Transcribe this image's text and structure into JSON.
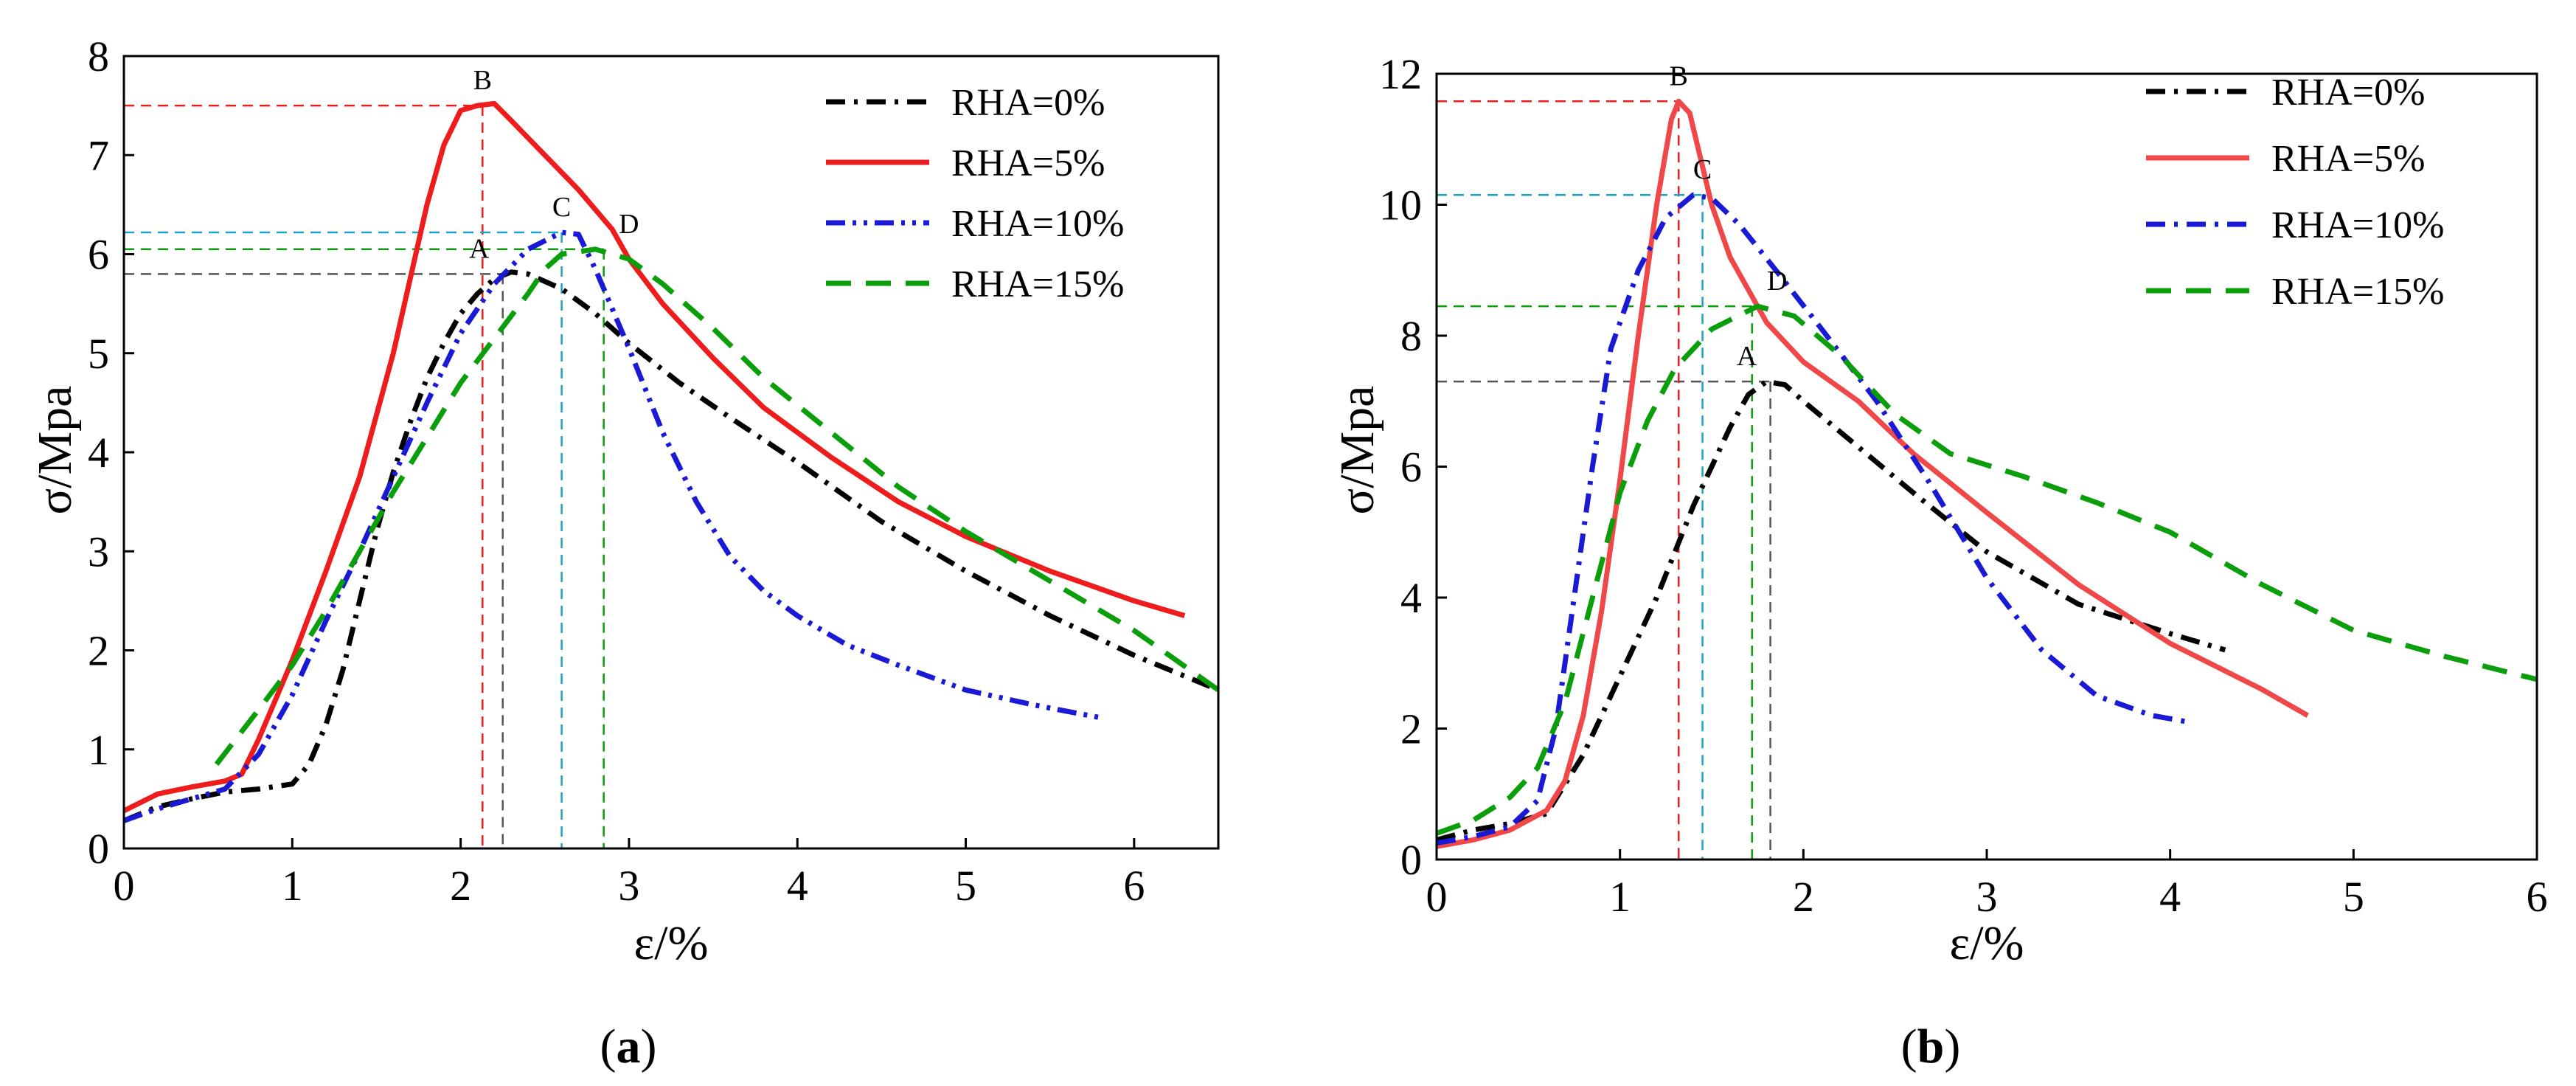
{
  "colors": {
    "rha0": "#000000",
    "rha5": "#ee1c1c",
    "rha10": "#1a1ad6",
    "rha15": "#0a9e0a",
    "rha5_b": "#f04848",
    "guide_a": "#555555",
    "guide_b": "#ee1c1c",
    "guide_c": "#1aa3c4",
    "guide_d": "#0a9e0a"
  },
  "chart_data": [
    {
      "type": "line",
      "panel_label": "a",
      "xlabel": "ε/%",
      "ylabel": "σ/Mpa",
      "xlim": [
        0,
        6.5
      ],
      "ylim": [
        0,
        8
      ],
      "xticks": [
        "0",
        "1",
        "2",
        "3",
        "4",
        "5",
        "6"
      ],
      "yticks": [
        "0",
        "1",
        "2",
        "3",
        "4",
        "5",
        "6",
        "7",
        "8"
      ],
      "legend": "top-right",
      "series": [
        {
          "name": "RHA=0%",
          "style": "dashdot",
          "color": "#000000",
          "points": [
            [
              0,
              0.28
            ],
            [
              0.2,
              0.42
            ],
            [
              0.4,
              0.5
            ],
            [
              0.6,
              0.57
            ],
            [
              0.8,
              0.6
            ],
            [
              1.0,
              0.65
            ],
            [
              1.1,
              0.85
            ],
            [
              1.2,
              1.25
            ],
            [
              1.3,
              1.8
            ],
            [
              1.4,
              2.5
            ],
            [
              1.5,
              3.2
            ],
            [
              1.6,
              3.8
            ],
            [
              1.7,
              4.3
            ],
            [
              1.8,
              4.75
            ],
            [
              1.9,
              5.1
            ],
            [
              2.0,
              5.4
            ],
            [
              2.1,
              5.6
            ],
            [
              2.2,
              5.75
            ],
            [
              2.3,
              5.82
            ],
            [
              2.4,
              5.8
            ],
            [
              2.6,
              5.65
            ],
            [
              2.8,
              5.4
            ],
            [
              3.0,
              5.1
            ],
            [
              3.3,
              4.7
            ],
            [
              3.6,
              4.35
            ],
            [
              4.0,
              3.9
            ],
            [
              4.5,
              3.3
            ],
            [
              5.0,
              2.8
            ],
            [
              5.5,
              2.35
            ],
            [
              6.0,
              1.95
            ],
            [
              6.5,
              1.6
            ]
          ]
        },
        {
          "name": "RHA=5%",
          "style": "solid",
          "color": "#ee1c1c",
          "points": [
            [
              0,
              0.38
            ],
            [
              0.2,
              0.55
            ],
            [
              0.4,
              0.62
            ],
            [
              0.6,
              0.68
            ],
            [
              0.7,
              0.75
            ],
            [
              0.8,
              1.1
            ],
            [
              0.9,
              1.5
            ],
            [
              1.0,
              1.9
            ],
            [
              1.2,
              2.8
            ],
            [
              1.4,
              3.75
            ],
            [
              1.6,
              5.0
            ],
            [
              1.8,
              6.5
            ],
            [
              1.9,
              7.1
            ],
            [
              2.0,
              7.45
            ],
            [
              2.1,
              7.5
            ],
            [
              2.2,
              7.52
            ],
            [
              2.3,
              7.35
            ],
            [
              2.5,
              7.0
            ],
            [
              2.7,
              6.65
            ],
            [
              2.9,
              6.25
            ],
            [
              3.0,
              5.95
            ],
            [
              3.2,
              5.5
            ],
            [
              3.5,
              4.95
            ],
            [
              3.8,
              4.45
            ],
            [
              4.2,
              3.95
            ],
            [
              4.6,
              3.5
            ],
            [
              5.0,
              3.15
            ],
            [
              5.5,
              2.8
            ],
            [
              6.0,
              2.5
            ],
            [
              6.3,
              2.35
            ]
          ]
        },
        {
          "name": "RHA=10%",
          "style": "dashdotdot",
          "color": "#1a1ad6",
          "points": [
            [
              0,
              0.28
            ],
            [
              0.2,
              0.4
            ],
            [
              0.4,
              0.5
            ],
            [
              0.6,
              0.6
            ],
            [
              0.8,
              0.95
            ],
            [
              1.0,
              1.55
            ],
            [
              1.2,
              2.3
            ],
            [
              1.4,
              3.0
            ],
            [
              1.6,
              3.75
            ],
            [
              1.8,
              4.5
            ],
            [
              2.0,
              5.2
            ],
            [
              2.2,
              5.7
            ],
            [
              2.4,
              6.05
            ],
            [
              2.6,
              6.22
            ],
            [
              2.7,
              6.2
            ],
            [
              2.8,
              5.85
            ],
            [
              3.0,
              5.05
            ],
            [
              3.2,
              4.2
            ],
            [
              3.4,
              3.5
            ],
            [
              3.6,
              2.95
            ],
            [
              3.8,
              2.6
            ],
            [
              4.0,
              2.35
            ],
            [
              4.3,
              2.05
            ],
            [
              4.6,
              1.85
            ],
            [
              5.0,
              1.6
            ],
            [
              5.4,
              1.45
            ],
            [
              5.8,
              1.32
            ]
          ]
        },
        {
          "name": "RHA=15%",
          "style": "dashed",
          "color": "#0a9e0a",
          "points": [
            [
              0.55,
              0.85
            ],
            [
              0.8,
              1.4
            ],
            [
              1.0,
              1.85
            ],
            [
              1.2,
              2.4
            ],
            [
              1.4,
              3.0
            ],
            [
              1.6,
              3.6
            ],
            [
              1.8,
              4.15
            ],
            [
              2.0,
              4.7
            ],
            [
              2.2,
              5.15
            ],
            [
              2.4,
              5.6
            ],
            [
              2.5,
              5.85
            ],
            [
              2.6,
              6.0
            ],
            [
              2.8,
              6.05
            ],
            [
              3.0,
              5.95
            ],
            [
              3.2,
              5.7
            ],
            [
              3.5,
              5.25
            ],
            [
              3.8,
              4.75
            ],
            [
              4.2,
              4.2
            ],
            [
              4.6,
              3.65
            ],
            [
              5.0,
              3.2
            ],
            [
              5.5,
              2.7
            ],
            [
              6.0,
              2.2
            ],
            [
              6.5,
              1.6
            ]
          ]
        }
      ],
      "peaks": [
        {
          "label": "A",
          "x": 2.25,
          "y": 5.8,
          "color": "#555555"
        },
        {
          "label": "B",
          "x": 2.13,
          "y": 7.5,
          "color": "#ee1c1c"
        },
        {
          "label": "C",
          "x": 2.6,
          "y": 6.22,
          "color": "#1aa3c4"
        },
        {
          "label": "D",
          "x": 2.85,
          "y": 6.05,
          "color": "#0a9e0a"
        }
      ]
    },
    {
      "type": "line",
      "panel_label": "b",
      "xlabel": "ε/%",
      "ylabel": "σ/Mpa",
      "xlim": [
        0,
        6
      ],
      "ylim": [
        0,
        12
      ],
      "xticks": [
        "0",
        "1",
        "2",
        "3",
        "4",
        "5",
        "6"
      ],
      "yticks": [
        "0",
        "2",
        "4",
        "6",
        "8",
        "10",
        "12"
      ],
      "legend": "top-right",
      "series": [
        {
          "name": "RHA=0%",
          "style": "dashdot",
          "color": "#000000",
          "points": [
            [
              0,
              0.3
            ],
            [
              0.2,
              0.45
            ],
            [
              0.4,
              0.55
            ],
            [
              0.6,
              0.7
            ],
            [
              0.8,
              1.6
            ],
            [
              1.0,
              2.8
            ],
            [
              1.2,
              4.0
            ],
            [
              1.4,
              5.4
            ],
            [
              1.6,
              6.6
            ],
            [
              1.7,
              7.1
            ],
            [
              1.8,
              7.3
            ],
            [
              1.9,
              7.25
            ],
            [
              2.0,
              7.0
            ],
            [
              2.3,
              6.3
            ],
            [
              2.6,
              5.6
            ],
            [
              3.0,
              4.7
            ],
            [
              3.5,
              3.9
            ],
            [
              4.0,
              3.45
            ],
            [
              4.3,
              3.2
            ]
          ]
        },
        {
          "name": "RHA=5%",
          "style": "solid",
          "color": "#f04848",
          "points": [
            [
              0,
              0.2
            ],
            [
              0.2,
              0.3
            ],
            [
              0.4,
              0.45
            ],
            [
              0.6,
              0.75
            ],
            [
              0.7,
              1.2
            ],
            [
              0.8,
              2.2
            ],
            [
              0.9,
              3.8
            ],
            [
              1.0,
              5.8
            ],
            [
              1.1,
              8.0
            ],
            [
              1.2,
              10.0
            ],
            [
              1.28,
              11.3
            ],
            [
              1.32,
              11.58
            ],
            [
              1.38,
              11.4
            ],
            [
              1.5,
              10.0
            ],
            [
              1.6,
              9.2
            ],
            [
              1.8,
              8.2
            ],
            [
              2.0,
              7.6
            ],
            [
              2.3,
              7.0
            ],
            [
              2.6,
              6.2
            ],
            [
              3.0,
              5.3
            ],
            [
              3.5,
              4.2
            ],
            [
              4.0,
              3.3
            ],
            [
              4.5,
              2.6
            ],
            [
              4.75,
              2.2
            ]
          ]
        },
        {
          "name": "RHA=10%",
          "style": "dashdot",
          "color": "#1a1ad6",
          "points": [
            [
              0,
              0.25
            ],
            [
              0.2,
              0.35
            ],
            [
              0.4,
              0.5
            ],
            [
              0.55,
              0.9
            ],
            [
              0.65,
              2.0
            ],
            [
              0.75,
              4.0
            ],
            [
              0.85,
              6.0
            ],
            [
              0.95,
              7.8
            ],
            [
              1.1,
              9.0
            ],
            [
              1.25,
              9.8
            ],
            [
              1.4,
              10.15
            ],
            [
              1.5,
              10.1
            ],
            [
              1.65,
              9.7
            ],
            [
              1.85,
              9.0
            ],
            [
              2.1,
              8.1
            ],
            [
              2.4,
              7.0
            ],
            [
              2.7,
              5.7
            ],
            [
              3.0,
              4.3
            ],
            [
              3.3,
              3.2
            ],
            [
              3.6,
              2.5
            ],
            [
              3.9,
              2.2
            ],
            [
              4.1,
              2.1
            ]
          ]
        },
        {
          "name": "RHA=15%",
          "style": "dashed",
          "color": "#0a9e0a",
          "points": [
            [
              0,
              0.4
            ],
            [
              0.2,
              0.6
            ],
            [
              0.4,
              0.95
            ],
            [
              0.55,
              1.4
            ],
            [
              0.7,
              2.4
            ],
            [
              0.85,
              4.0
            ],
            [
              1.0,
              5.6
            ],
            [
              1.15,
              6.7
            ],
            [
              1.3,
              7.5
            ],
            [
              1.5,
              8.1
            ],
            [
              1.75,
              8.45
            ],
            [
              1.95,
              8.3
            ],
            [
              2.2,
              7.7
            ],
            [
              2.5,
              6.8
            ],
            [
              2.8,
              6.2
            ],
            [
              3.2,
              5.85
            ],
            [
              3.6,
              5.45
            ],
            [
              4.0,
              5.0
            ],
            [
              4.5,
              4.2
            ],
            [
              5.0,
              3.5
            ],
            [
              5.5,
              3.1
            ],
            [
              6.0,
              2.75
            ]
          ]
        }
      ],
      "peaks": [
        {
          "label": "A",
          "x": 1.82,
          "y": 7.3,
          "color": "#555555"
        },
        {
          "label": "B",
          "x": 1.32,
          "y": 11.58,
          "color": "#ee1c1c"
        },
        {
          "label": "C",
          "x": 1.45,
          "y": 10.15,
          "color": "#1aa3c4"
        },
        {
          "label": "D",
          "x": 1.72,
          "y": 8.45,
          "color": "#0a9e0a"
        }
      ]
    }
  ]
}
